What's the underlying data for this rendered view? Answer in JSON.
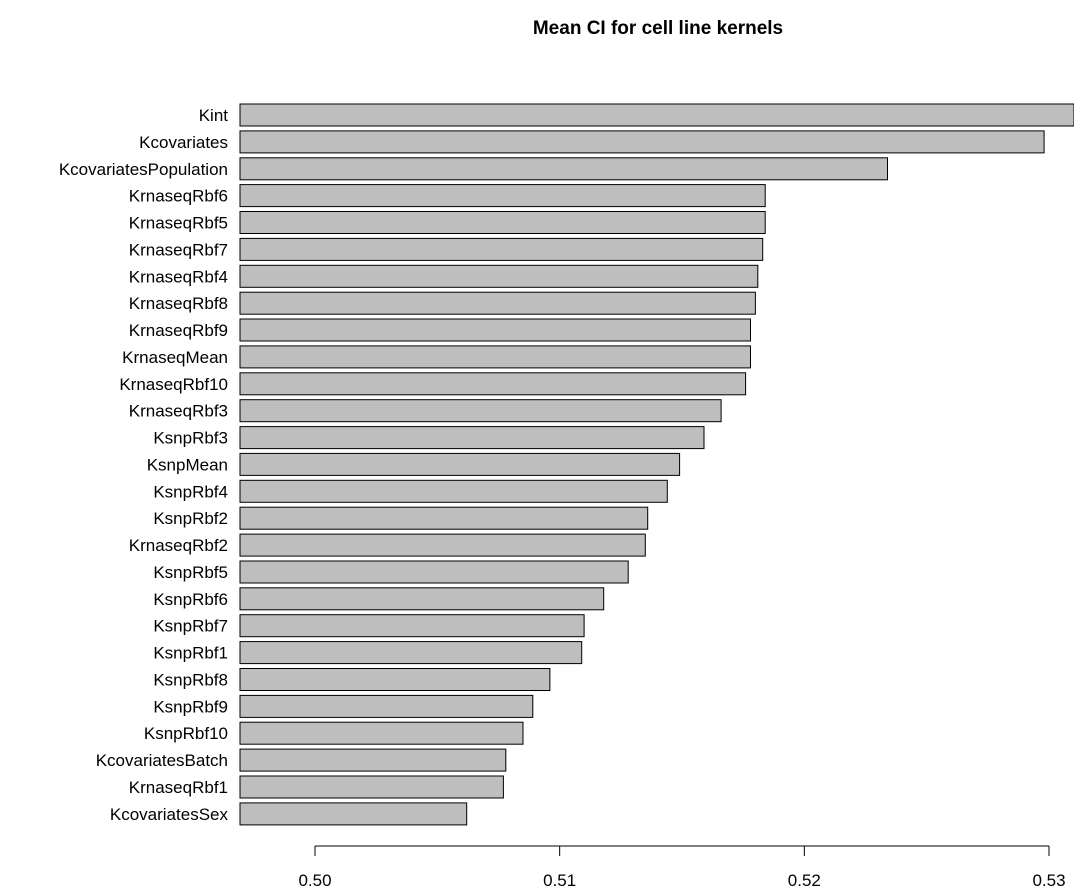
{
  "chart_data": {
    "type": "bar",
    "orientation": "horizontal",
    "title": "Mean CI for cell line kernels",
    "xlabel": "",
    "ylabel": "",
    "xlim": [
      0.497,
      0.531
    ],
    "bar_color": "#bebebe",
    "bar_edge_color": "#000000",
    "grid": false,
    "x_ticks": [
      {
        "value": 0.5,
        "label": "0.50"
      },
      {
        "value": 0.51,
        "label": "0.51"
      },
      {
        "value": 0.52,
        "label": "0.52"
      },
      {
        "value": 0.53,
        "label": "0.53"
      }
    ],
    "categories": [
      "Kint",
      "Kcovariates",
      "KcovariatesPopulation",
      "KrnaseqRbf6",
      "KrnaseqRbf5",
      "KrnaseqRbf7",
      "KrnaseqRbf4",
      "KrnaseqRbf8",
      "KrnaseqRbf9",
      "KrnaseqMean",
      "KrnaseqRbf10",
      "KrnaseqRbf3",
      "KsnpRbf3",
      "KsnpMean",
      "KsnpRbf4",
      "KsnpRbf2",
      "KrnaseqRbf2",
      "KsnpRbf5",
      "KsnpRbf6",
      "KsnpRbf7",
      "KsnpRbf1",
      "KsnpRbf8",
      "KsnpRbf9",
      "KsnpRbf10",
      "KcovariatesBatch",
      "KrnaseqRbf1",
      "KcovariatesSex"
    ],
    "values": [
      0.5311,
      0.5298,
      0.5234,
      0.5184,
      0.5184,
      0.5183,
      0.5181,
      0.518,
      0.5178,
      0.5178,
      0.5176,
      0.5166,
      0.5159,
      0.5149,
      0.5144,
      0.5136,
      0.5135,
      0.5128,
      0.5118,
      0.511,
      0.5109,
      0.5096,
      0.5089,
      0.5085,
      0.5078,
      0.5077,
      0.5062
    ]
  }
}
